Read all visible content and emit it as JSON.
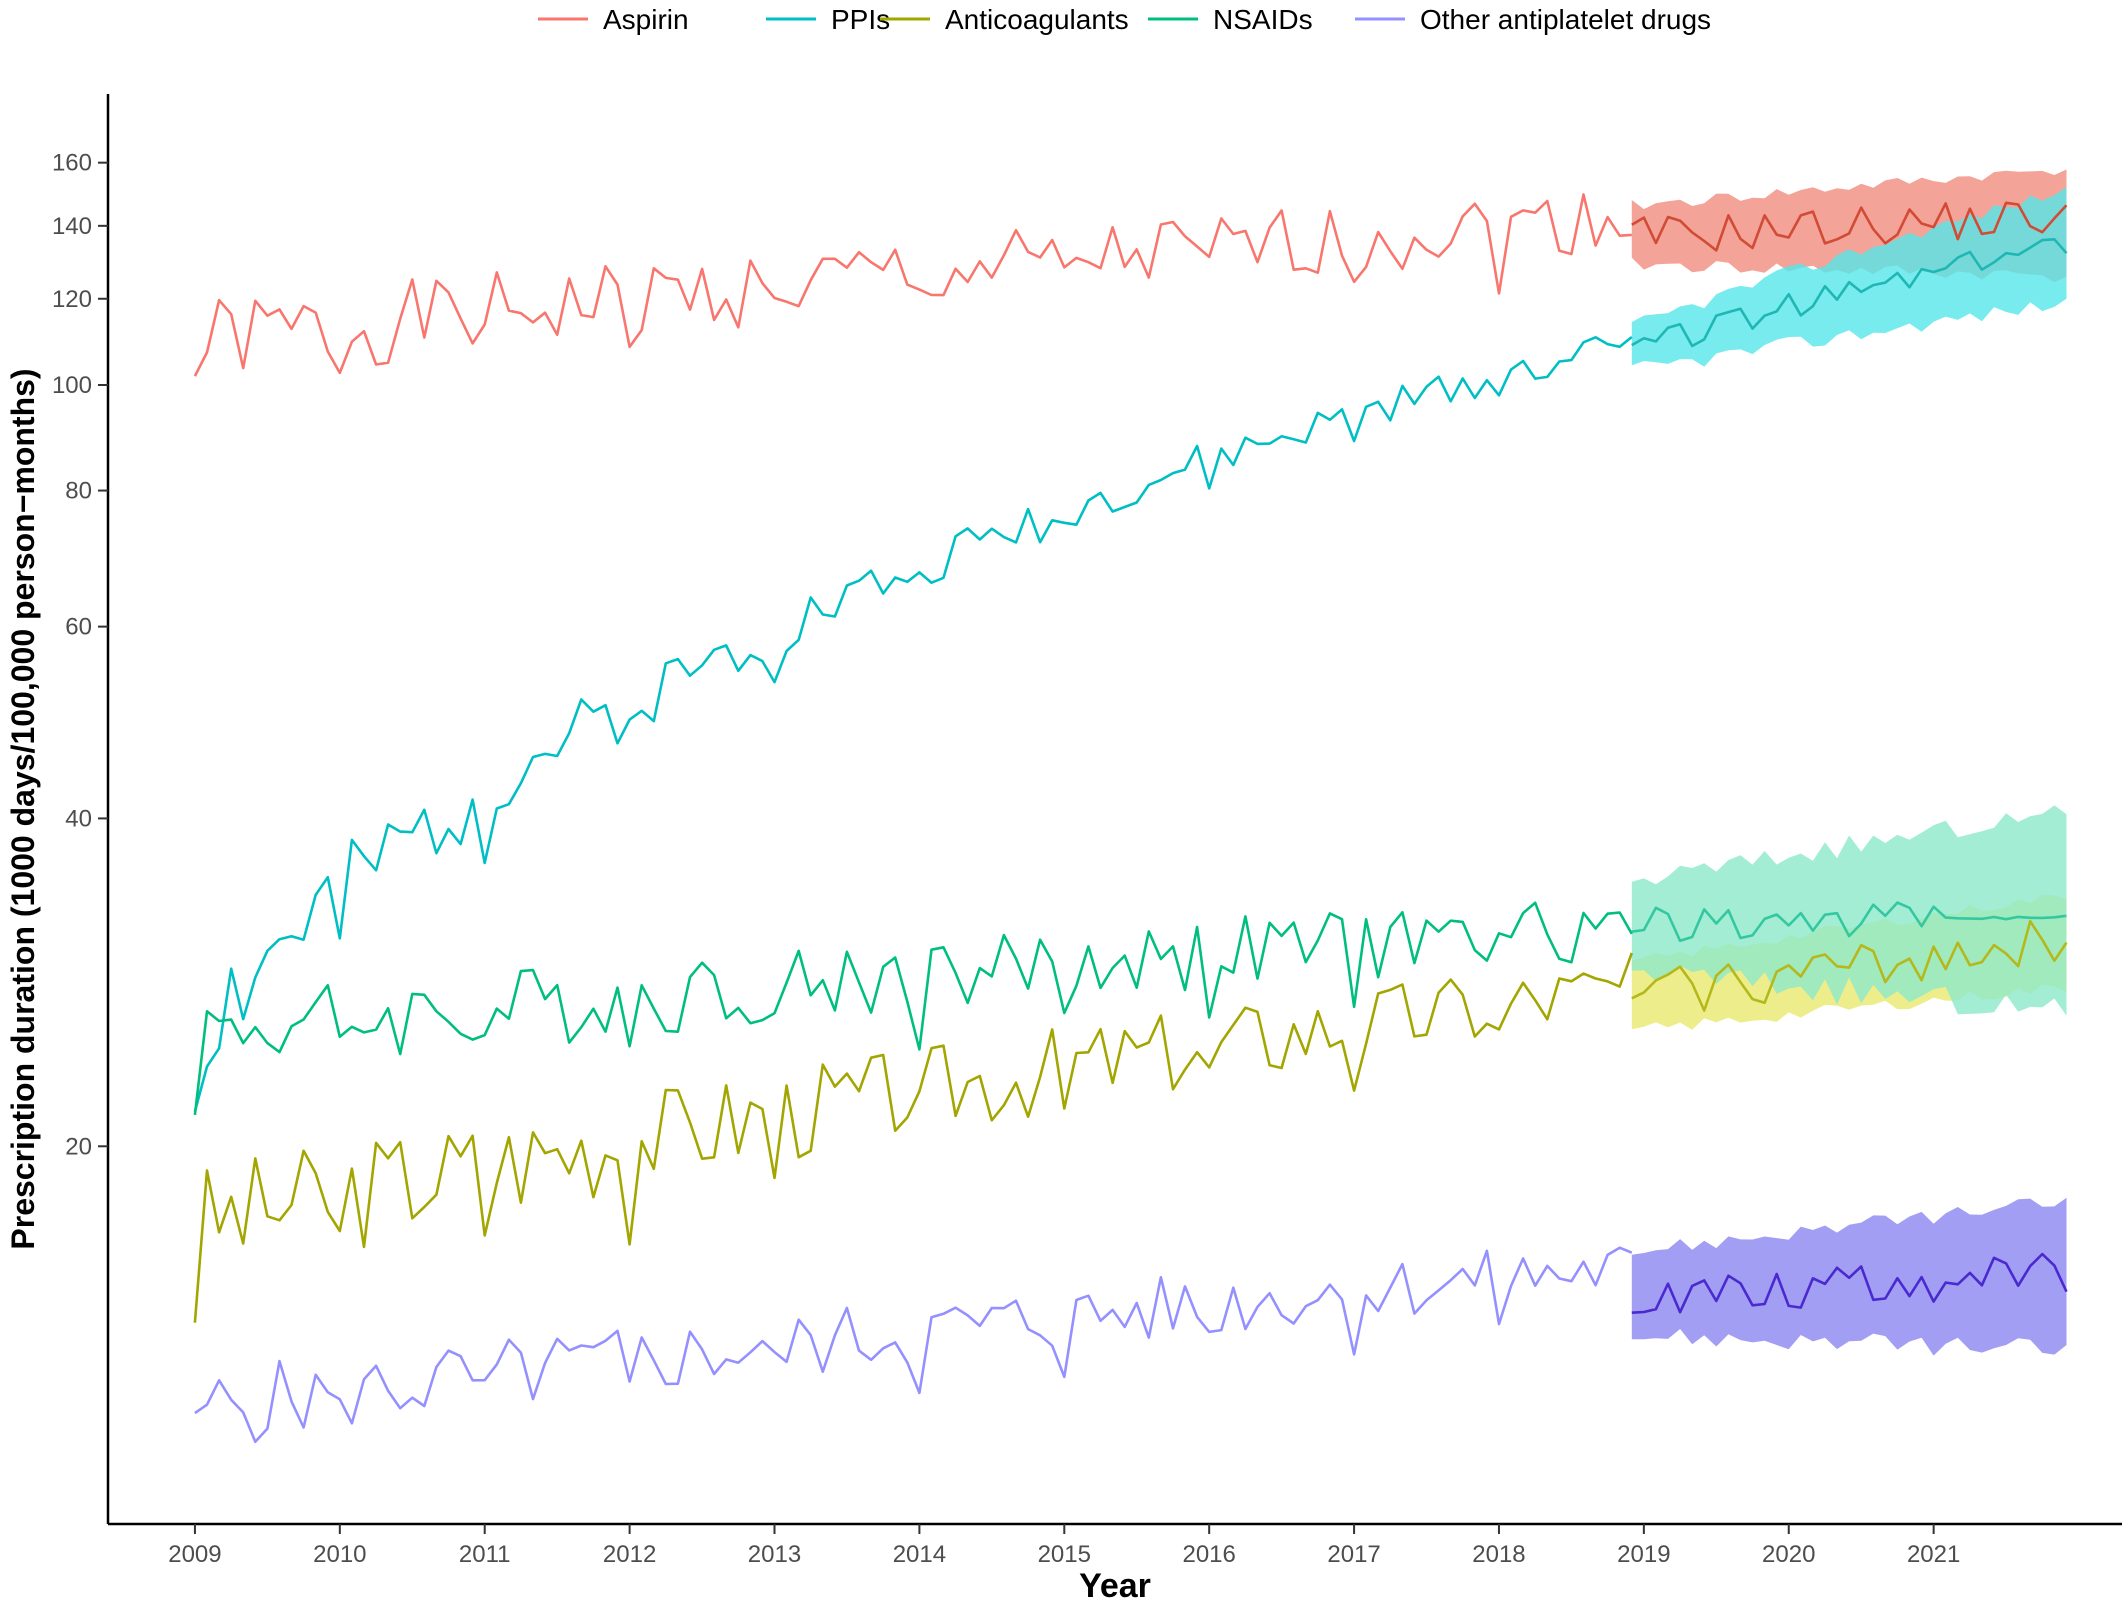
{
  "chart_data": {
    "type": "line",
    "xlabel": "Year",
    "ylabel": "Prescription duration (1000 days/100,000 person−months)",
    "y_scale": "log",
    "ylim": [
      9,
      185
    ],
    "xlim": [
      2008.4,
      2022.3
    ],
    "x_ticks": [
      2009,
      2010,
      2011,
      2012,
      2013,
      2014,
      2015,
      2016,
      2017,
      2018,
      2019,
      2020,
      2021
    ],
    "x_tick_labels": [
      "2009",
      "2010",
      "2011",
      "2012",
      "2013",
      "2014",
      "2015",
      "2016",
      "2017",
      "2018",
      "2019",
      "2020",
      "2021"
    ],
    "y_ticks": [
      20,
      40,
      60,
      80,
      100,
      120,
      140,
      160
    ],
    "y_tick_labels": [
      "20",
      "40",
      "60",
      "80",
      "100",
      "120",
      "140",
      "160"
    ],
    "legend_position": "top",
    "observed_period": [
      "2009-01",
      "2018-12"
    ],
    "forecast_period": [
      "2018-12",
      "2021-12"
    ],
    "series": [
      {
        "name": "Aspirin",
        "color": "#F8766D",
        "forecast_color": "#D14B35",
        "band_color": "#F08C7E",
        "observed": {
          "start": 110,
          "end": 143,
          "amplitude": 10,
          "seed": 1
        },
        "forecast": {
          "start": 137,
          "end": 143,
          "amplitude": 6,
          "band_start": [
            129,
            146
          ],
          "band_end": [
            126,
            158
          ]
        }
      },
      {
        "name": "PPIs",
        "color": "#00BFC4",
        "forecast_color": "#1FB7B4",
        "band_color": "#55E6EA",
        "observed": {
          "start": 25.5,
          "end": 110,
          "amplitude": 3.5,
          "seed": 2
        },
        "forecast": {
          "start": 108,
          "end": 135,
          "amplitude": 3.5,
          "band_start": [
            103,
            113
          ],
          "band_end": [
            119,
            151
          ]
        }
      },
      {
        "name": "Anticoagulants",
        "color": "#A3A500",
        "forecast_color": "#B5B81A",
        "band_color": "#E9EA6E",
        "observed": {
          "start": 17,
          "end": 28,
          "amplitude": 2.2,
          "seed": 3
        },
        "forecast": {
          "start": 27.5,
          "end": 31,
          "amplitude": 1.5,
          "band_start": [
            25.5,
            29.5
          ],
          "band_end": [
            28,
            34
          ]
        }
      },
      {
        "name": "NSAIDs",
        "color": "#00BF7D",
        "forecast_color": "#34C8A0",
        "band_color": "#8CE9C9",
        "observed": {
          "start": 25.5,
          "end": 32,
          "amplitude": 2.3,
          "seed": 4
        },
        "forecast": {
          "start": 32,
          "end": 32.5,
          "amplitude": 1.2,
          "band_start": [
            29,
            35
          ],
          "band_end": [
            26.5,
            40.5
          ]
        }
      },
      {
        "name": "Other antiplatelet drugs",
        "color": "#9590FF",
        "forecast_color": "#4A2AD0",
        "band_color": "#8B86F0",
        "observed": {
          "start": 11.5,
          "end": 15.5,
          "amplitude": 1.0,
          "seed": 5
        },
        "forecast": {
          "start": 14.6,
          "end": 15.3,
          "amplitude": 0.7,
          "band_start": [
            13.4,
            16.0
          ],
          "band_end": [
            13.0,
            17.8
          ]
        }
      }
    ]
  }
}
